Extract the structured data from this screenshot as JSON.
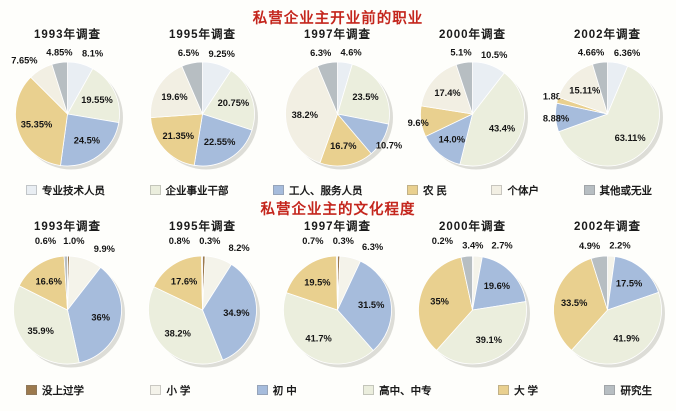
{
  "page": {
    "background": "#fefefb",
    "title_color": "#c4261d"
  },
  "chart_data": [
    {
      "type": "pie",
      "title": "私营企业主开业前的职业",
      "title_color": "#c4261d",
      "legend": [
        "专业技术人员",
        "企业事业干部",
        "工人、服务人员",
        "农 民",
        "个体户",
        "其他或无业"
      ],
      "colors": [
        "#e9eef3",
        "#ebeedd",
        "#a6bcdc",
        "#e9d08f",
        "#f2efe3",
        "#b7bec2"
      ],
      "legend_position": "bottom",
      "pies": [
        {
          "subtitle": "1993年调查",
          "values": [
            8.1,
            19.55,
            24.5,
            35.35,
            7.65,
            4.85
          ],
          "labels": [
            "8.1%",
            "19.55%",
            "24.5%",
            "35.35%",
            "7.65%",
            "4.85%"
          ]
        },
        {
          "subtitle": "1995年调查",
          "values": [
            9.25,
            20.75,
            22.55,
            21.35,
            19.6,
            6.5
          ],
          "labels": [
            "9.25%",
            "20.75%",
            "22.55%",
            "21.35%",
            "19.6%",
            "6.5%"
          ]
        },
        {
          "subtitle": "1997年调查",
          "values": [
            4.6,
            23.5,
            10.7,
            16.7,
            38.2,
            6.3
          ],
          "labels": [
            "4.6%",
            "23.5%",
            "10.7%",
            "16.7%",
            "38.2%",
            "6.3%"
          ]
        },
        {
          "subtitle": "2000年调查",
          "values": [
            10.5,
            43.4,
            14.0,
            9.6,
            17.4,
            5.1
          ],
          "labels": [
            "10.5%",
            "43.4%",
            "14.0%",
            "9.6%",
            "17.4%",
            "5.1%"
          ]
        },
        {
          "subtitle": "2002年调查",
          "values": [
            6.36,
            63.11,
            8.88,
            1.88,
            15.11,
            4.66
          ],
          "labels": [
            "6.36%",
            "63.11%",
            "8.88%",
            "1.88%",
            "15.11%",
            "4.66%"
          ]
        }
      ]
    },
    {
      "type": "pie",
      "title": "私营企业主的文化程度",
      "title_color": "#c4261d",
      "legend": [
        "没上过学",
        "小 学",
        "初 中",
        "高中、中专",
        "大 学",
        "研究生"
      ],
      "colors": [
        "#9c7a4e",
        "#f4f3ea",
        "#a6bcdc",
        "#ebeedd",
        "#e9d08f",
        "#b7bec2"
      ],
      "legend_position": "bottom",
      "pies": [
        {
          "subtitle": "1993年调查",
          "values": [
            0.6,
            9.9,
            36,
            35.9,
            16.6,
            1.0
          ],
          "labels": [
            "0.6%",
            "9.9%",
            "36%",
            "35.9%",
            "16.6%",
            "1.0%"
          ]
        },
        {
          "subtitle": "1995年调查",
          "values": [
            0.8,
            8.2,
            34.9,
            38.2,
            17.6,
            0.3
          ],
          "labels": [
            "0.8%",
            "8.2%",
            "34.9%",
            "38.2%",
            "17.6%",
            "0.3%"
          ]
        },
        {
          "subtitle": "1997年调查",
          "values": [
            0.7,
            6.3,
            31.5,
            41.7,
            19.5,
            0.3
          ],
          "labels": [
            "0.7%",
            "6.3%",
            "31.5%",
            "41.7%",
            "19.5%",
            "0.3%"
          ]
        },
        {
          "subtitle": "2000年调查",
          "values": [
            0.2,
            2.7,
            19.6,
            39.1,
            35,
            3.4
          ],
          "labels": [
            "0.2%",
            "2.7%",
            "19.6%",
            "39.1%",
            "35%",
            "3.4%"
          ]
        },
        {
          "subtitle": "2002年调查",
          "values": [
            0,
            2.2,
            17.5,
            41.9,
            33.5,
            4.9
          ],
          "labels": [
            "",
            "2.2%",
            "17.5%",
            "41.9%",
            "33.5%",
            "4.9%"
          ]
        }
      ]
    }
  ]
}
